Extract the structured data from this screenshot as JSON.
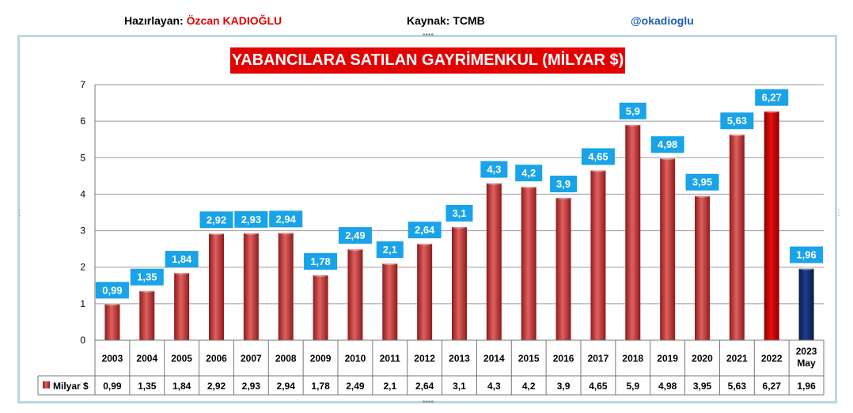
{
  "header": {
    "prepared_label": "Hazırlayan: ",
    "prepared_name": "Özcan KADIOĞLU",
    "source": "Kaynak: TCMB",
    "handle": "@okadioglu"
  },
  "chart_data": {
    "type": "bar",
    "title": "YABANCILARA SATILAN GAYRİMENKUL (MİLYAR $)",
    "categories": [
      "2003",
      "2004",
      "2005",
      "2006",
      "2007",
      "2008",
      "2009",
      "2010",
      "2011",
      "2012",
      "2013",
      "2014",
      "2015",
      "2016",
      "2017",
      "2018",
      "2019",
      "2020",
      "2021",
      "2022",
      "2023\nMay"
    ],
    "series": [
      {
        "name": "Milyar $",
        "values": [
          0.99,
          1.35,
          1.84,
          2.92,
          2.93,
          2.94,
          1.78,
          2.49,
          2.1,
          2.64,
          3.1,
          4.3,
          4.2,
          3.9,
          4.65,
          5.9,
          4.98,
          3.95,
          5.63,
          6.27,
          1.96
        ]
      }
    ],
    "value_labels": [
      "0,99",
      "1,35",
      "1,84",
      "2,92",
      "2,93",
      "2,94",
      "1,78",
      "2,49",
      "2,1",
      "2,64",
      "3,1",
      "4,3",
      "4,2",
      "3,9",
      "4,65",
      "5,9",
      "4,98",
      "3,95",
      "5,63",
      "6,27",
      "1,96"
    ],
    "ylim": [
      0,
      7
    ],
    "yticks": [
      0,
      1,
      2,
      3,
      4,
      5,
      6,
      7
    ],
    "grid": true,
    "data_table": true,
    "colors": {
      "default": "#c43a3a",
      "highlight_2022": "#cc0000",
      "highlight_2023": "#0f2560",
      "label_bg": "#19a3e8",
      "title_bg": "#e30000"
    }
  }
}
